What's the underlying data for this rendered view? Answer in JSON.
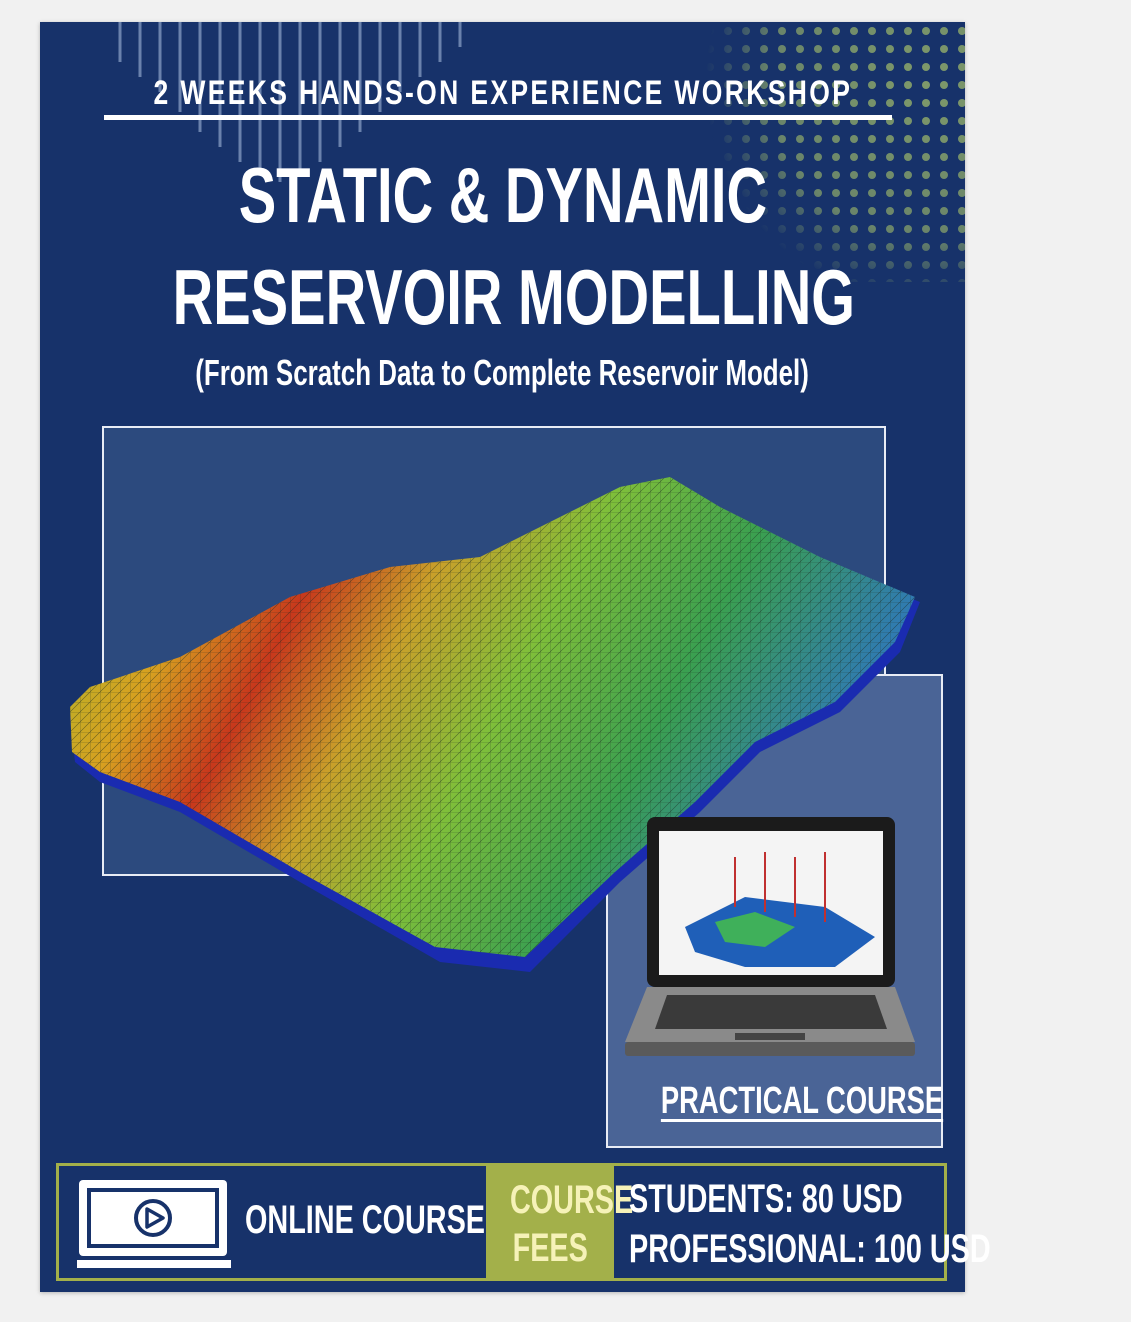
{
  "header": {
    "subtitle": "2 WEEKS HANDS-ON EXPERIENCE WORKSHOP",
    "title_line1": "STATIC & DYNAMIC",
    "title_line2": "RESERVOIR MODELLING",
    "tagline": "(From Scratch Data to Complete Reservoir Model)"
  },
  "practical_label": "PRACTICAL COURSE",
  "footer": {
    "online_label": "ONLINE COURSE",
    "fees_line1": "COURSE",
    "fees_line2": "FEES",
    "students_price": "STUDENTS: 80 USD",
    "professional_price": "PROFESSIONAL: 100 USD"
  },
  "colors": {
    "background": "#17326a",
    "accent": "#a3b04a",
    "text": "#ffffff"
  },
  "icons": [
    "play-video-monitor-icon",
    "laptop-illustration"
  ]
}
